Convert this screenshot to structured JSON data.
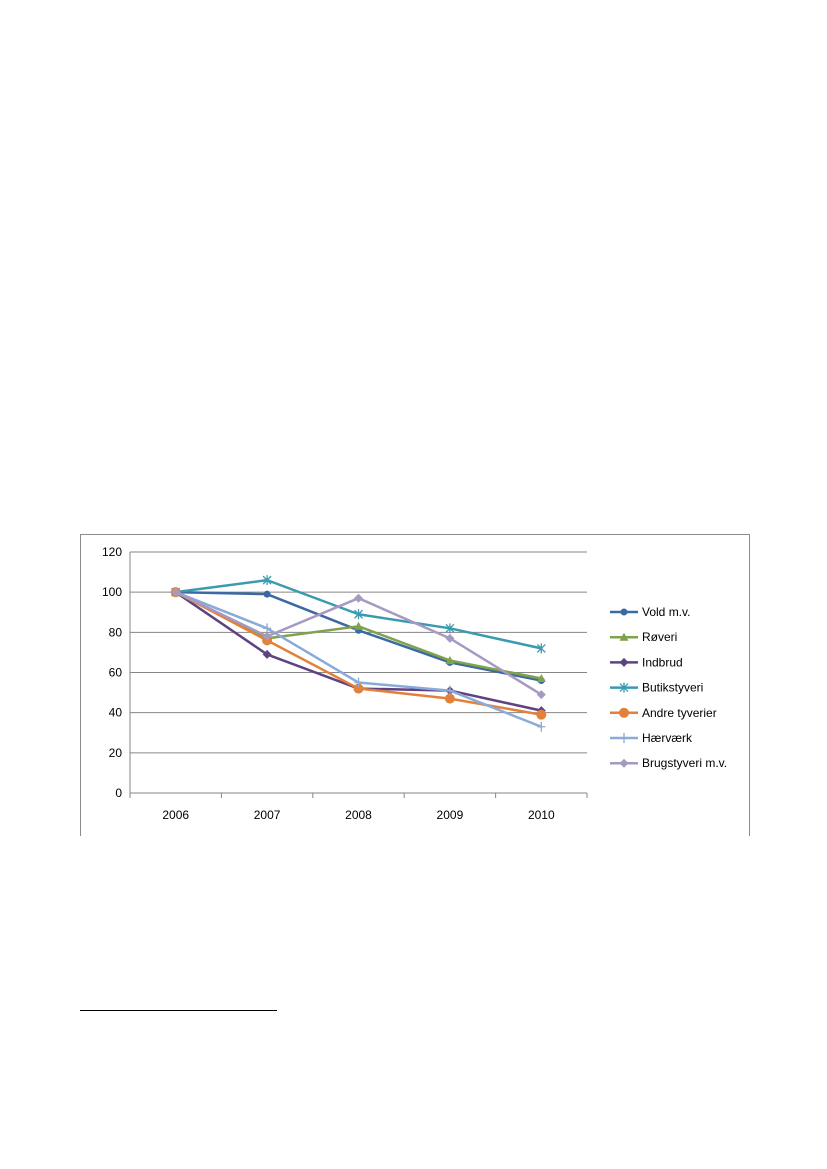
{
  "chart_data": {
    "type": "line",
    "title": "",
    "xlabel": "",
    "ylabel": "",
    "categories": [
      "2006",
      "2007",
      "2008",
      "2009",
      "2010"
    ],
    "ylim": [
      0,
      120
    ],
    "yticks": [
      0,
      20,
      40,
      60,
      80,
      100,
      120
    ],
    "grid": true,
    "legend_position": "right",
    "series": [
      {
        "name": "Vold m.v.",
        "color": "#3b6aa3",
        "marker": "circle",
        "values": [
          100,
          99,
          81,
          65,
          56
        ]
      },
      {
        "name": "Røveri",
        "color": "#7fa34a",
        "marker": "triangle",
        "values": [
          100,
          77,
          83,
          66,
          57
        ]
      },
      {
        "name": "Indbrud",
        "color": "#5e4380",
        "marker": "diamond",
        "values": [
          100,
          69,
          52,
          51,
          41
        ]
      },
      {
        "name": "Butikstyveri",
        "color": "#3a9bb0",
        "marker": "star",
        "values": [
          100,
          106,
          89,
          82,
          72
        ]
      },
      {
        "name": "Andre tyverier",
        "color": "#e2813a",
        "marker": "big-circle",
        "values": [
          100,
          76,
          52,
          47,
          39
        ]
      },
      {
        "name": "Hærværk",
        "color": "#8aaad8",
        "marker": "plus",
        "values": [
          100,
          82,
          55,
          51,
          33
        ]
      },
      {
        "name": "Brugstyveri m.v.",
        "color": "#a69ac2",
        "marker": "diamond",
        "values": [
          100,
          78,
          97,
          77,
          49
        ]
      }
    ]
  }
}
